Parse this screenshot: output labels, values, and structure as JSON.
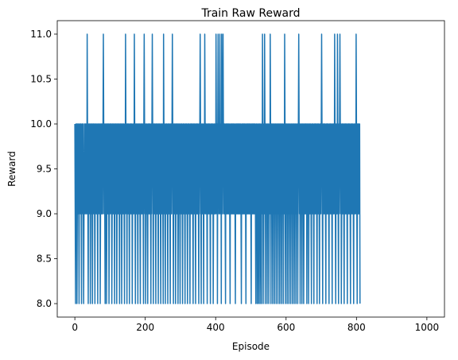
{
  "chart_data": {
    "type": "line",
    "title": "Train Raw Reward",
    "xlabel": "Episode",
    "ylabel": "Reward",
    "xlim": [
      -50,
      1050
    ],
    "ylim": [
      7.85,
      11.15
    ],
    "xticks": [
      0,
      200,
      400,
      600,
      800,
      1000
    ],
    "yticks": [
      8.0,
      8.5,
      9.0,
      9.5,
      10.0,
      10.5,
      11.0
    ],
    "xtick_labels": [
      "0",
      "200",
      "400",
      "600",
      "800",
      "1000"
    ],
    "ytick_labels": [
      "8.0",
      "8.5",
      "9.0",
      "9.5",
      "10.0",
      "10.5",
      "11.0"
    ],
    "grid": false,
    "legend": false,
    "color": "#1f77b4",
    "series": [
      {
        "values": [
          10,
          9,
          8,
          10,
          9,
          10,
          8,
          9,
          10,
          9,
          10,
          9,
          8,
          10,
          9,
          10,
          9,
          10,
          9,
          8,
          10,
          9,
          10,
          10,
          9,
          8,
          9,
          10,
          9,
          10,
          9,
          10,
          9,
          10,
          9,
          11,
          10,
          9,
          8,
          10,
          9,
          10,
          9,
          10,
          8,
          9,
          10,
          9,
          10,
          9,
          8,
          10,
          9,
          10,
          9,
          10,
          9,
          8,
          10,
          9,
          10,
          9,
          9,
          10,
          9,
          8,
          10,
          9,
          10,
          9,
          9,
          10,
          8,
          9,
          10,
          9,
          10,
          9,
          10,
          9,
          10,
          11,
          10,
          9,
          10,
          9,
          8,
          10,
          9,
          10,
          8,
          9,
          10,
          9,
          10,
          9,
          10,
          8,
          9,
          10,
          9,
          10,
          10,
          9,
          10,
          8,
          9,
          10,
          9,
          10,
          9,
          10,
          9,
          8,
          10,
          9,
          10,
          9,
          10,
          8,
          9,
          10,
          9,
          10,
          9,
          10,
          9,
          8,
          10,
          9,
          10,
          9,
          10,
          8,
          9,
          10,
          9,
          10,
          9,
          10,
          9,
          8,
          10,
          9,
          11,
          10,
          9,
          10,
          8,
          10,
          9,
          10,
          9,
          10,
          9,
          8,
          10,
          9,
          10,
          9,
          10,
          9,
          10,
          8,
          9,
          10,
          9,
          10,
          9,
          11,
          10,
          9,
          8,
          10,
          9,
          10,
          9,
          10,
          9,
          8,
          10,
          9,
          10,
          9,
          10,
          9,
          8,
          10,
          9,
          10,
          9,
          10,
          9,
          10,
          9,
          8,
          10,
          11,
          10,
          9,
          10,
          8,
          9,
          10,
          9,
          10,
          9,
          8,
          10,
          9,
          10,
          9,
          10,
          9,
          10,
          9,
          8,
          10,
          9,
          10,
          11,
          10,
          9,
          8,
          10,
          9,
          10,
          9,
          10,
          9,
          8,
          10,
          9,
          10,
          9,
          10,
          9,
          8,
          10,
          9,
          10,
          9,
          10,
          9,
          8,
          10,
          9,
          10,
          9,
          10,
          9,
          8,
          11,
          10,
          9,
          10,
          9,
          8,
          10,
          9,
          10,
          9,
          10,
          9,
          8,
          10,
          9,
          10,
          9,
          10,
          9,
          8,
          10,
          9,
          10,
          9,
          10,
          11,
          10,
          9,
          8,
          10,
          9,
          10,
          9,
          10,
          8,
          9,
          10,
          9,
          10,
          9,
          10,
          8,
          9,
          10,
          9,
          10,
          9,
          8,
          10,
          9,
          10,
          9,
          10,
          9,
          8,
          10,
          9,
          10,
          9,
          10,
          9,
          8,
          10,
          9,
          10,
          9,
          10,
          9,
          8,
          10,
          9,
          10,
          9,
          10,
          9,
          8,
          10,
          9,
          10,
          9,
          10,
          9,
          10,
          9,
          8,
          10,
          9,
          10,
          9,
          10,
          9,
          8,
          10,
          9,
          10,
          9,
          10,
          9,
          10,
          9,
          8,
          10,
          9,
          10,
          11,
          10,
          9,
          8,
          10,
          9,
          10,
          9,
          10,
          9,
          8,
          10,
          9,
          11,
          10,
          9,
          10,
          9,
          10,
          9,
          8,
          10,
          9,
          10,
          9,
          10,
          9,
          10,
          9,
          8,
          10,
          9,
          10,
          9,
          10,
          9,
          10,
          8,
          9,
          10,
          9,
          10,
          9,
          10,
          9,
          11,
          10,
          9,
          10,
          8,
          10,
          11,
          10,
          9,
          10,
          9,
          11,
          10,
          9,
          10,
          8,
          11,
          10,
          9,
          10,
          11,
          10,
          9,
          10,
          9,
          10,
          9,
          8,
          10,
          9,
          10,
          9,
          10,
          9,
          10,
          9,
          10,
          9,
          10,
          9,
          8,
          10,
          9,
          10,
          9,
          10,
          9,
          10,
          9,
          10,
          9,
          10,
          9,
          10,
          9,
          8,
          10,
          9,
          10,
          9,
          10,
          9,
          10,
          9,
          10,
          9,
          10,
          9,
          10,
          9,
          10,
          9,
          8,
          10,
          9,
          10,
          9,
          10,
          9,
          10,
          9,
          10,
          9,
          10,
          9,
          8,
          10,
          9,
          10,
          9,
          10,
          9,
          10,
          9,
          10,
          9,
          10,
          9,
          10,
          9,
          8,
          10,
          9,
          10,
          9,
          10,
          9,
          10,
          9,
          10,
          9,
          10,
          9,
          8,
          10,
          9,
          10,
          8,
          9,
          10,
          9,
          8,
          10,
          9,
          10,
          8,
          9,
          10,
          9,
          8,
          10,
          9,
          11,
          10,
          8,
          9,
          10,
          9,
          11,
          10,
          8,
          9,
          10,
          9,
          10,
          8,
          9,
          10,
          9,
          10,
          8,
          9,
          10,
          9,
          11,
          10,
          8,
          9,
          10,
          9,
          10,
          8,
          9,
          10,
          9,
          10,
          8,
          9,
          10,
          9,
          10,
          8,
          9,
          10,
          9,
          10,
          8,
          9,
          10,
          9,
          10,
          8,
          9,
          10,
          9,
          10,
          8,
          9,
          10,
          9,
          10,
          8,
          9,
          10,
          9,
          11,
          10,
          8,
          9,
          10,
          9,
          10,
          8,
          9,
          10,
          9,
          10,
          8,
          9,
          10,
          9,
          10,
          8,
          9,
          10,
          9,
          10,
          8,
          9,
          10,
          9,
          10,
          8,
          9,
          10,
          9,
          10,
          8,
          9,
          10,
          9,
          10,
          8,
          9,
          10,
          11,
          10,
          9,
          10,
          8,
          9,
          10,
          9,
          10,
          8,
          9,
          10,
          9,
          10,
          8,
          9,
          10,
          9,
          10,
          9,
          10,
          9,
          10,
          8,
          9,
          10,
          9,
          10,
          8,
          9,
          10,
          9,
          10,
          9,
          10,
          9,
          8,
          10,
          9,
          10,
          9,
          10,
          9,
          8,
          10,
          9,
          10,
          9,
          10,
          9,
          10,
          9,
          8,
          10,
          9,
          10,
          9,
          10,
          9,
          8,
          10,
          9,
          10,
          9,
          10,
          11,
          10,
          9,
          8,
          10,
          9,
          10,
          9,
          10,
          9,
          10,
          9,
          8,
          10,
          9,
          10,
          9,
          10,
          9,
          10,
          9,
          8,
          10,
          9,
          10,
          9,
          10,
          9,
          10,
          9,
          8,
          10,
          9,
          10,
          9,
          10,
          9,
          11,
          10,
          9,
          8,
          10,
          9,
          10,
          9,
          11,
          10,
          9,
          8,
          10,
          9,
          10,
          11,
          10,
          9,
          10,
          8,
          9,
          10,
          9,
          10,
          9,
          10,
          9,
          8,
          10,
          9,
          10,
          9,
          10,
          9,
          10,
          9,
          8,
          10,
          9,
          10,
          9,
          10,
          9,
          10,
          9,
          8,
          10,
          9,
          10,
          9,
          10,
          9,
          10,
          9,
          8,
          10,
          9,
          10,
          9,
          10,
          9,
          11,
          10,
          9,
          8,
          10,
          9,
          10,
          9,
          10,
          9,
          10,
          8
        ]
      }
    ]
  }
}
